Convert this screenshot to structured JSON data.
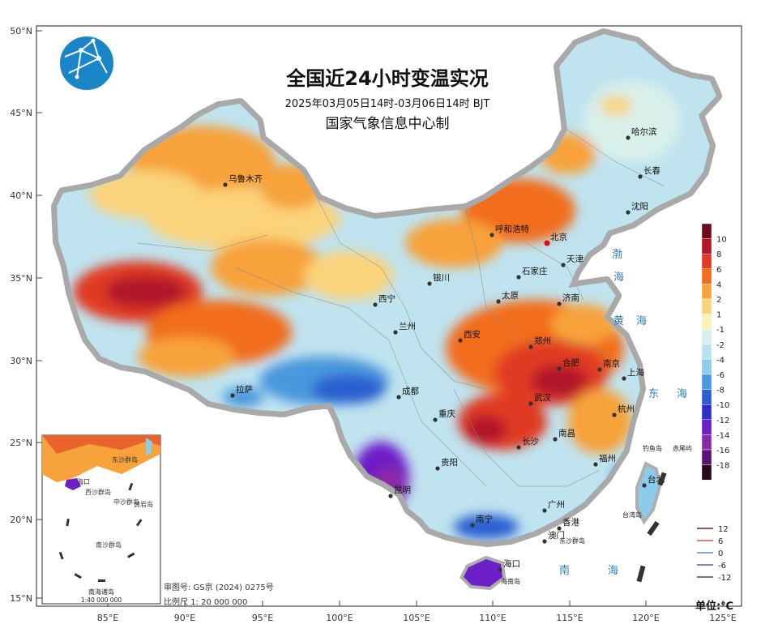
{
  "header": {
    "title": "全国近24小时变温实况",
    "period": "2025年03月05日14时-03月06日14时  BJT",
    "producer": "国家气象信息中心制"
  },
  "logo": {
    "icon": "globe-network-icon"
  },
  "axes": {
    "lat_labels": [
      "50°N",
      "45°N",
      "40°N",
      "35°N",
      "30°N",
      "25°N",
      "20°N",
      "15°N"
    ],
    "lon_labels": [
      "85°E",
      "90°E",
      "95°E",
      "100°E",
      "105°E",
      "110°E",
      "115°E",
      "120°E",
      "125°E"
    ]
  },
  "cities": [
    {
      "name": "乌鲁木齐"
    },
    {
      "name": "哈尔滨"
    },
    {
      "name": "长春"
    },
    {
      "name": "沈阳"
    },
    {
      "name": "呼和浩特"
    },
    {
      "name": "北京"
    },
    {
      "name": "天津"
    },
    {
      "name": "石家庄"
    },
    {
      "name": "银川"
    },
    {
      "name": "太原"
    },
    {
      "name": "济南"
    },
    {
      "name": "西宁"
    },
    {
      "name": "兰州"
    },
    {
      "name": "西安"
    },
    {
      "name": "郑州"
    },
    {
      "name": "合肥"
    },
    {
      "name": "南京"
    },
    {
      "name": "上海"
    },
    {
      "name": "拉萨"
    },
    {
      "name": "成都"
    },
    {
      "name": "武汉"
    },
    {
      "name": "杭州"
    },
    {
      "name": "重庆"
    },
    {
      "name": "长沙"
    },
    {
      "name": "南昌"
    },
    {
      "name": "福州"
    },
    {
      "name": "台北"
    },
    {
      "name": "贵阳"
    },
    {
      "name": "昆明"
    },
    {
      "name": "南宁"
    },
    {
      "name": "广州"
    },
    {
      "name": "香港"
    },
    {
      "name": "澳门"
    },
    {
      "name": "海口"
    }
  ],
  "seas": [
    "渤",
    "海",
    "黄",
    "海",
    "东",
    "海",
    "南",
    "海"
  ],
  "islands": [
    "钓鱼岛",
    "赤尾屿",
    "台湾岛",
    "东沙群岛",
    "海南岛"
  ],
  "legend": {
    "ticks": [
      "10",
      "8",
      "6",
      "4",
      "2",
      "1",
      "-1",
      "-2",
      "-4",
      "-6",
      "-8",
      "-10",
      "-12",
      "-14",
      "-16",
      "-18"
    ],
    "colors": [
      "#6e0a1c",
      "#b3192b",
      "#e03a24",
      "#f26d1e",
      "#f7a23b",
      "#fbd37a",
      "#fbf2b7",
      "#d9f0ea",
      "#b6e3ee",
      "#8ccbea",
      "#4a97dd",
      "#2a5fd0",
      "#2e2ec8",
      "#6d1fc8",
      "#8a2aa8",
      "#5a1578",
      "#2a0a1a"
    ],
    "unit": "单位:℃"
  },
  "contour_legend": [
    {
      "value": "12",
      "color": "#b24a5a"
    },
    {
      "value": "6",
      "color": "#e08080"
    },
    {
      "value": "0",
      "color": "#7da6e8"
    },
    {
      "value": "-6",
      "color": "#9a78c8"
    },
    {
      "value": "-12",
      "color": "#8a6a7a"
    }
  ],
  "inset": {
    "title": "南海诸岛",
    "scale": "1:40 000 000",
    "labels": [
      "海口",
      "东沙群岛",
      "西沙群岛",
      "中沙群岛",
      "黄岩岛",
      "南沙群岛"
    ]
  },
  "footer": {
    "approval": "审图号: GS京 (2024) 0275号",
    "scale": "比例尺 1: 20 000 000"
  }
}
